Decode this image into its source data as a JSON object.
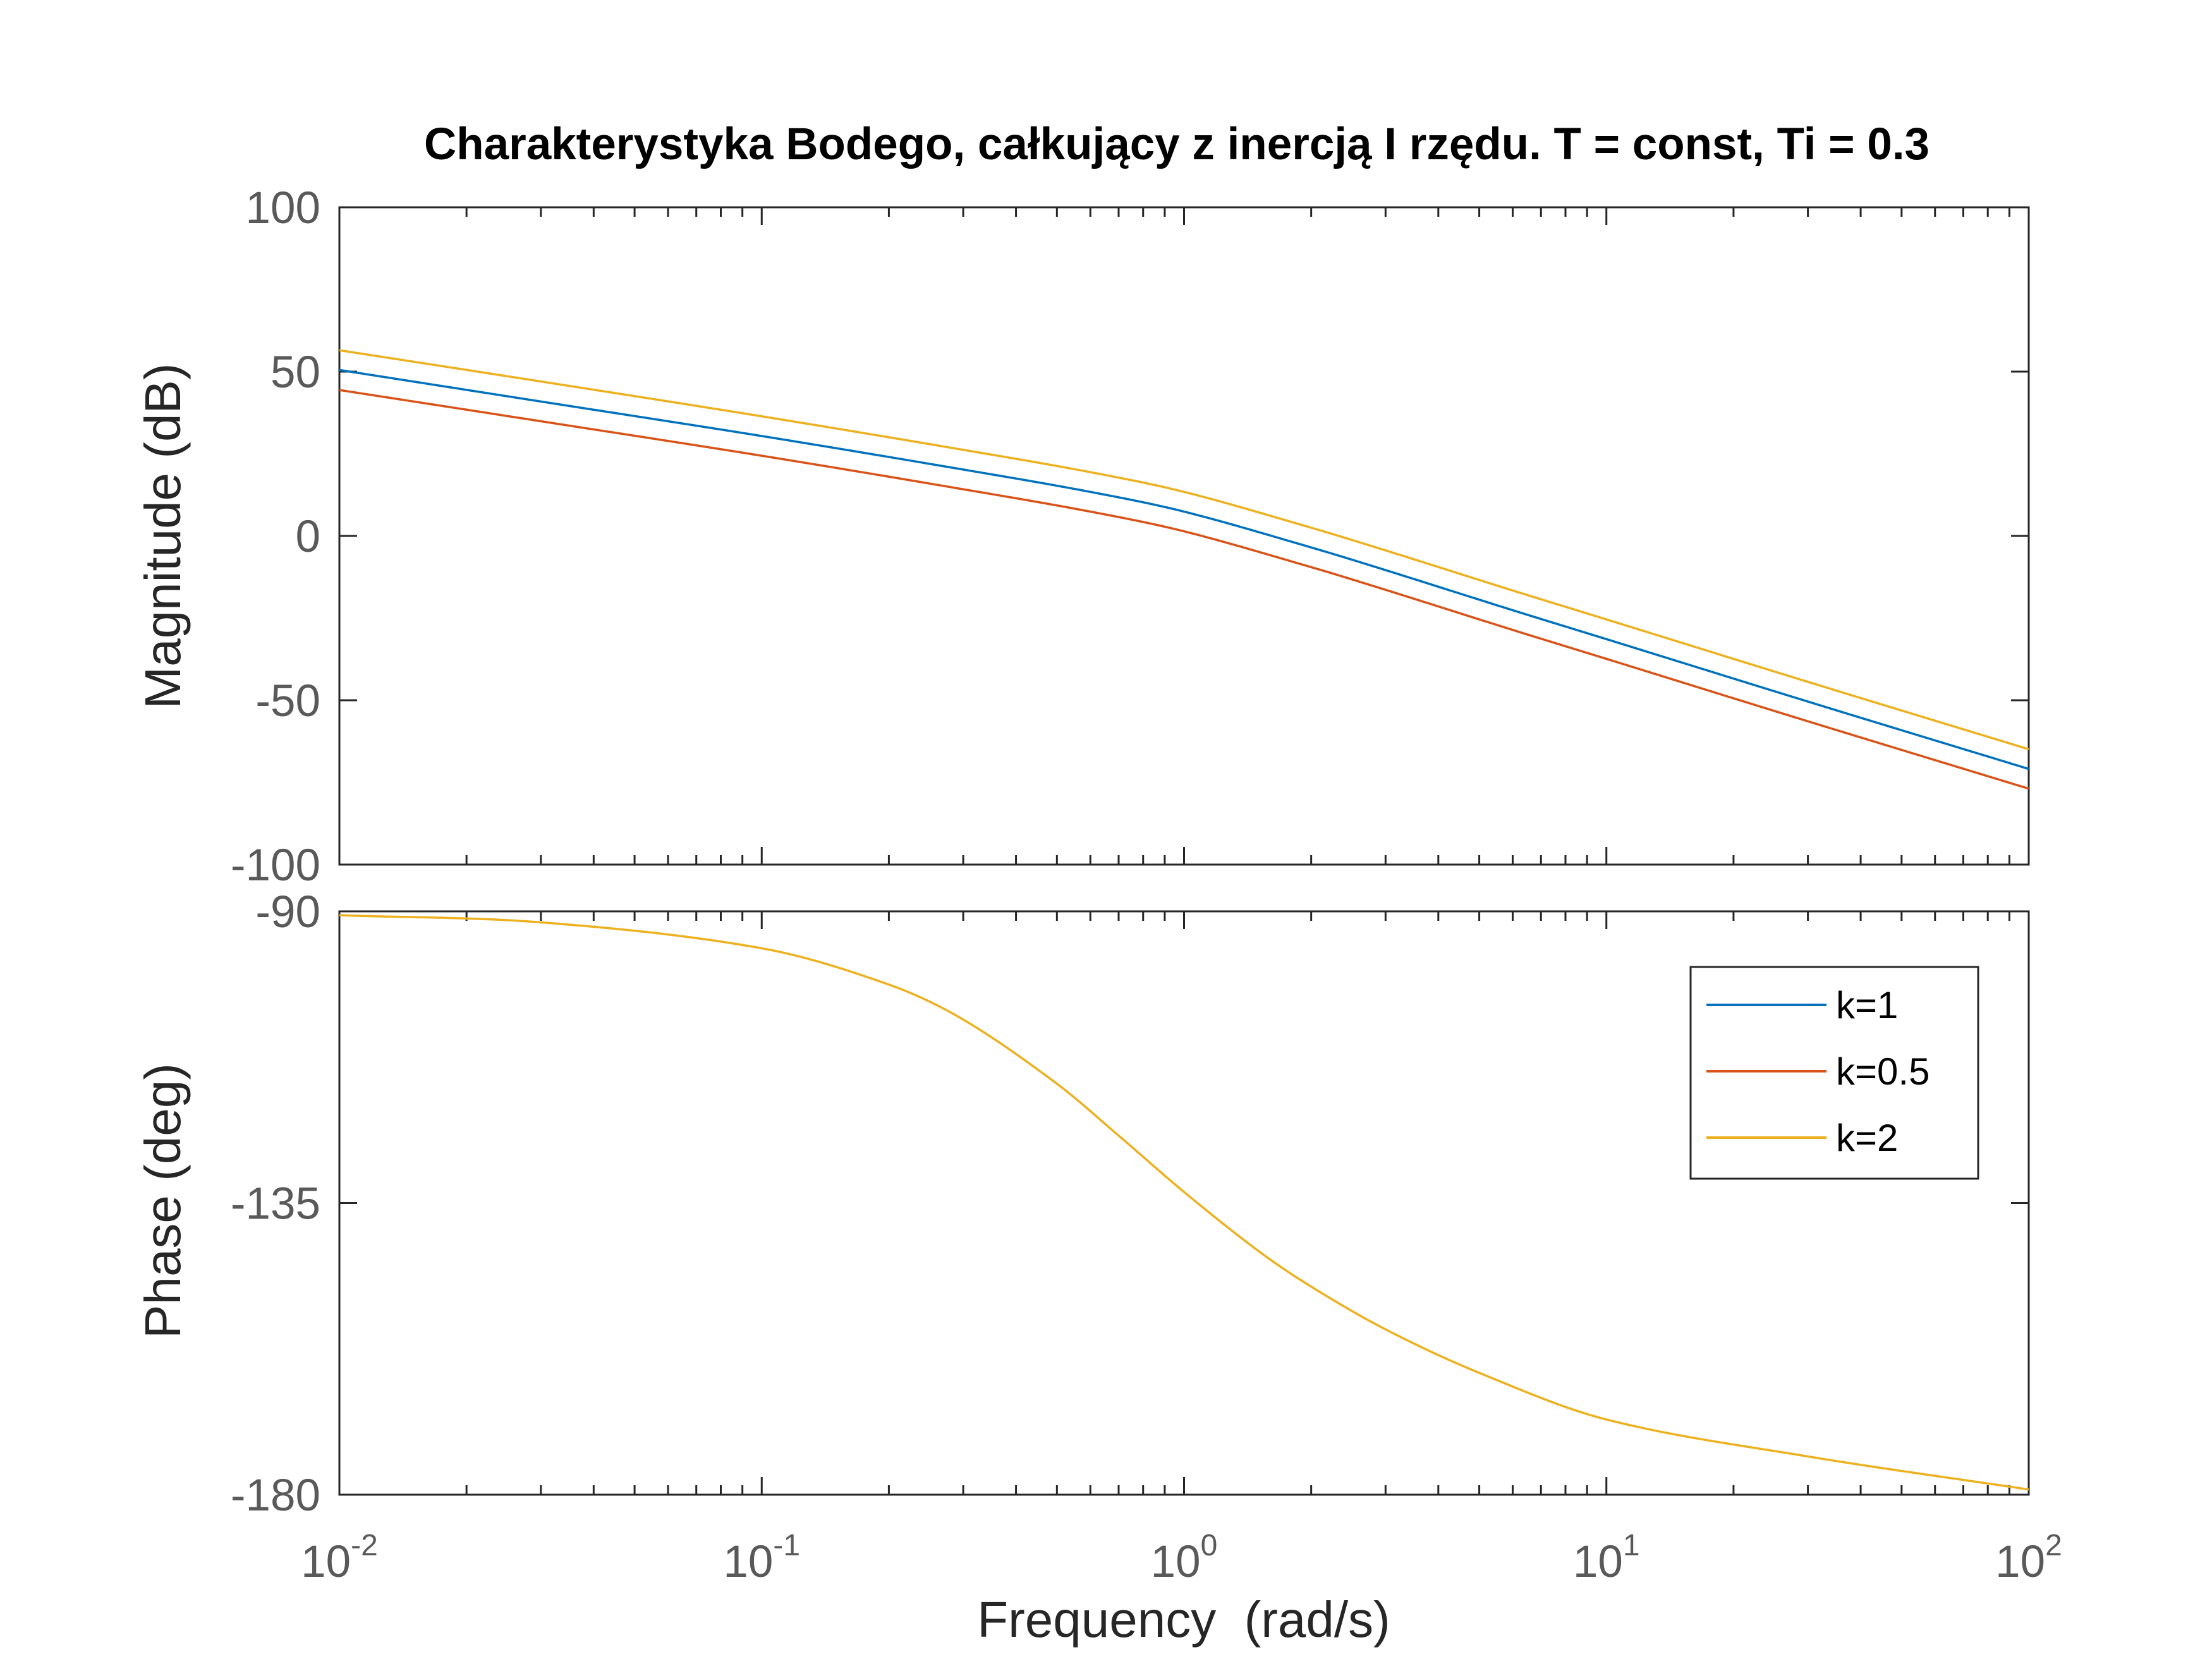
{
  "chart_data": [
    {
      "type": "line",
      "title": "Charakterystyka Bodego, całkujący z inercją I rzędu. T = const, Ti = 0.3",
      "xlabel": "",
      "ylabel": "Magnitude (dB)",
      "xscale": "log",
      "xlim": [
        0.01,
        100
      ],
      "ylim": [
        -100,
        100
      ],
      "yticks": [
        "100",
        "50",
        "0",
        "-50",
        "-100"
      ],
      "grid": false,
      "series": [
        {
          "name": "k=1",
          "color": "#0072BD",
          "x": [
            0.01,
            0.03,
            0.1,
            0.3,
            0.6,
            1,
            2,
            3,
            6,
            10,
            30,
            100
          ],
          "y": [
            50.5,
            40.9,
            30.4,
            20.2,
            13.4,
            7.4,
            -3.5,
            -10.4,
            -22.6,
            -31.4,
            -50.4,
            -70.9
          ]
        },
        {
          "name": "k=0.5",
          "color": "#D95319",
          "x": [
            0.01,
            0.03,
            0.1,
            0.3,
            0.6,
            1,
            2,
            3,
            6,
            10,
            30,
            100
          ],
          "y": [
            44.4,
            34.9,
            24.4,
            14.2,
            7.4,
            1.4,
            -9.5,
            -16.4,
            -28.6,
            -37.4,
            -56.4,
            -76.9
          ]
        },
        {
          "name": "k=2",
          "color": "#EDB120",
          "x": [
            0.01,
            0.03,
            0.1,
            0.3,
            0.6,
            1,
            2,
            3,
            6,
            10,
            30,
            100
          ],
          "y": [
            56.5,
            47.0,
            36.4,
            26.2,
            19.4,
            13.4,
            2.5,
            -4.4,
            -16.6,
            -25.4,
            -44.4,
            -64.9
          ]
        }
      ]
    },
    {
      "type": "line",
      "xlabel": "Frequency  (rad/s)",
      "ylabel": "Phase (deg)",
      "xscale": "log",
      "xlim": [
        0.01,
        100
      ],
      "ylim": [
        -180,
        -90
      ],
      "yticks": [
        "-90",
        "-135",
        "-180"
      ],
      "xticks": [
        {
          "base": "10",
          "exp": "-2"
        },
        {
          "base": "10",
          "exp": "-1"
        },
        {
          "base": "10",
          "exp": "0"
        },
        {
          "base": "10",
          "exp": "1"
        },
        {
          "base": "10",
          "exp": "2"
        }
      ],
      "grid": false,
      "legend_position": "top-right",
      "legend": [
        "k=1",
        "k=0.5",
        "k=2"
      ],
      "series": [
        {
          "name": "k=2",
          "color": "#EDB120",
          "x": [
            0.01,
            0.03,
            0.1,
            0.2,
            0.3,
            0.5,
            0.7,
            1,
            1.5,
            2,
            3,
            5,
            10,
            30,
            100
          ],
          "y": [
            -90.6,
            -91.7,
            -95.7,
            -101.3,
            -106.7,
            -116.6,
            -124.6,
            -133.3,
            -142.4,
            -147.9,
            -154.5,
            -161.2,
            -168.4,
            -174.1,
            -179.2
          ]
        }
      ]
    }
  ]
}
